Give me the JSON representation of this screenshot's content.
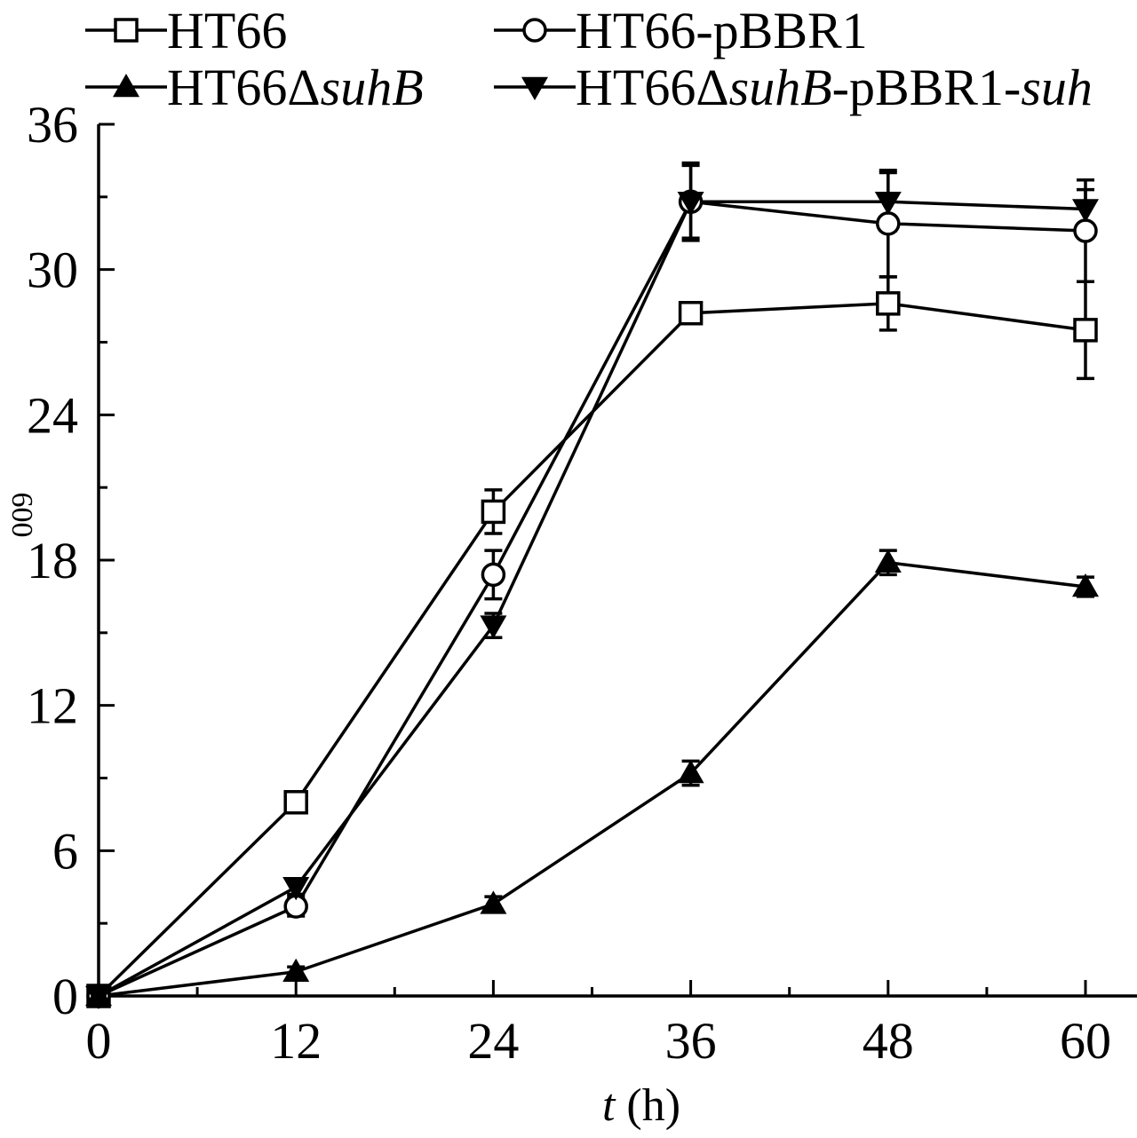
{
  "chart_data": {
    "type": "line",
    "xlabel_var": "t",
    "xlabel_unit": " (h)",
    "ylabel_sub": "600",
    "x": [
      0,
      12,
      24,
      36,
      48,
      60
    ],
    "x_ticks": [
      "0",
      "12",
      "24",
      "36",
      "48",
      "60"
    ],
    "y_ticks": [
      "0",
      "6",
      "12",
      "18",
      "24",
      "30",
      "36"
    ],
    "xlim": [
      0,
      60
    ],
    "ylim": [
      0,
      36
    ],
    "grid": false,
    "legend_position": "top",
    "series": [
      {
        "name": "HT66",
        "label_parts": [
          {
            "t": "HT66",
            "i": false
          }
        ],
        "marker": "square-open",
        "values": [
          0,
          8.0,
          20.0,
          28.2,
          28.6,
          27.5
        ],
        "errors": [
          0,
          0.3,
          0.9,
          0.3,
          1.1,
          2.0
        ]
      },
      {
        "name": "HT66-pBBR1",
        "label_parts": [
          {
            "t": "HT66-pBBR1",
            "i": false
          }
        ],
        "marker": "circle-open",
        "values": [
          0,
          3.7,
          17.4,
          32.8,
          31.9,
          31.6
        ],
        "errors": [
          0,
          0.4,
          1.0,
          1.5,
          2.2,
          2.1
        ]
      },
      {
        "name": "HT66ΔsuhB",
        "label_parts": [
          {
            "t": "HT66Δ",
            "i": false
          },
          {
            "t": "suhB",
            "i": true
          }
        ],
        "marker": "triangle-up-filled",
        "values": [
          0,
          1.0,
          3.8,
          9.2,
          17.9,
          16.9
        ],
        "errors": [
          0,
          0.2,
          0.3,
          0.5,
          0.5,
          0.4
        ]
      },
      {
        "name": "HT66ΔsuhB-pBBR1-suh",
        "label_parts": [
          {
            "t": "HT66Δ",
            "i": false
          },
          {
            "t": "suhB",
            "i": true
          },
          {
            "t": "-pBBR1-",
            "i": false
          },
          {
            "t": "suh",
            "i": true
          }
        ],
        "marker": "triangle-down-filled",
        "values": [
          0,
          4.5,
          15.3,
          32.8,
          32.8,
          32.5
        ],
        "errors": [
          0,
          0.3,
          0.5,
          1.6,
          1.2,
          0.8
        ]
      }
    ]
  }
}
